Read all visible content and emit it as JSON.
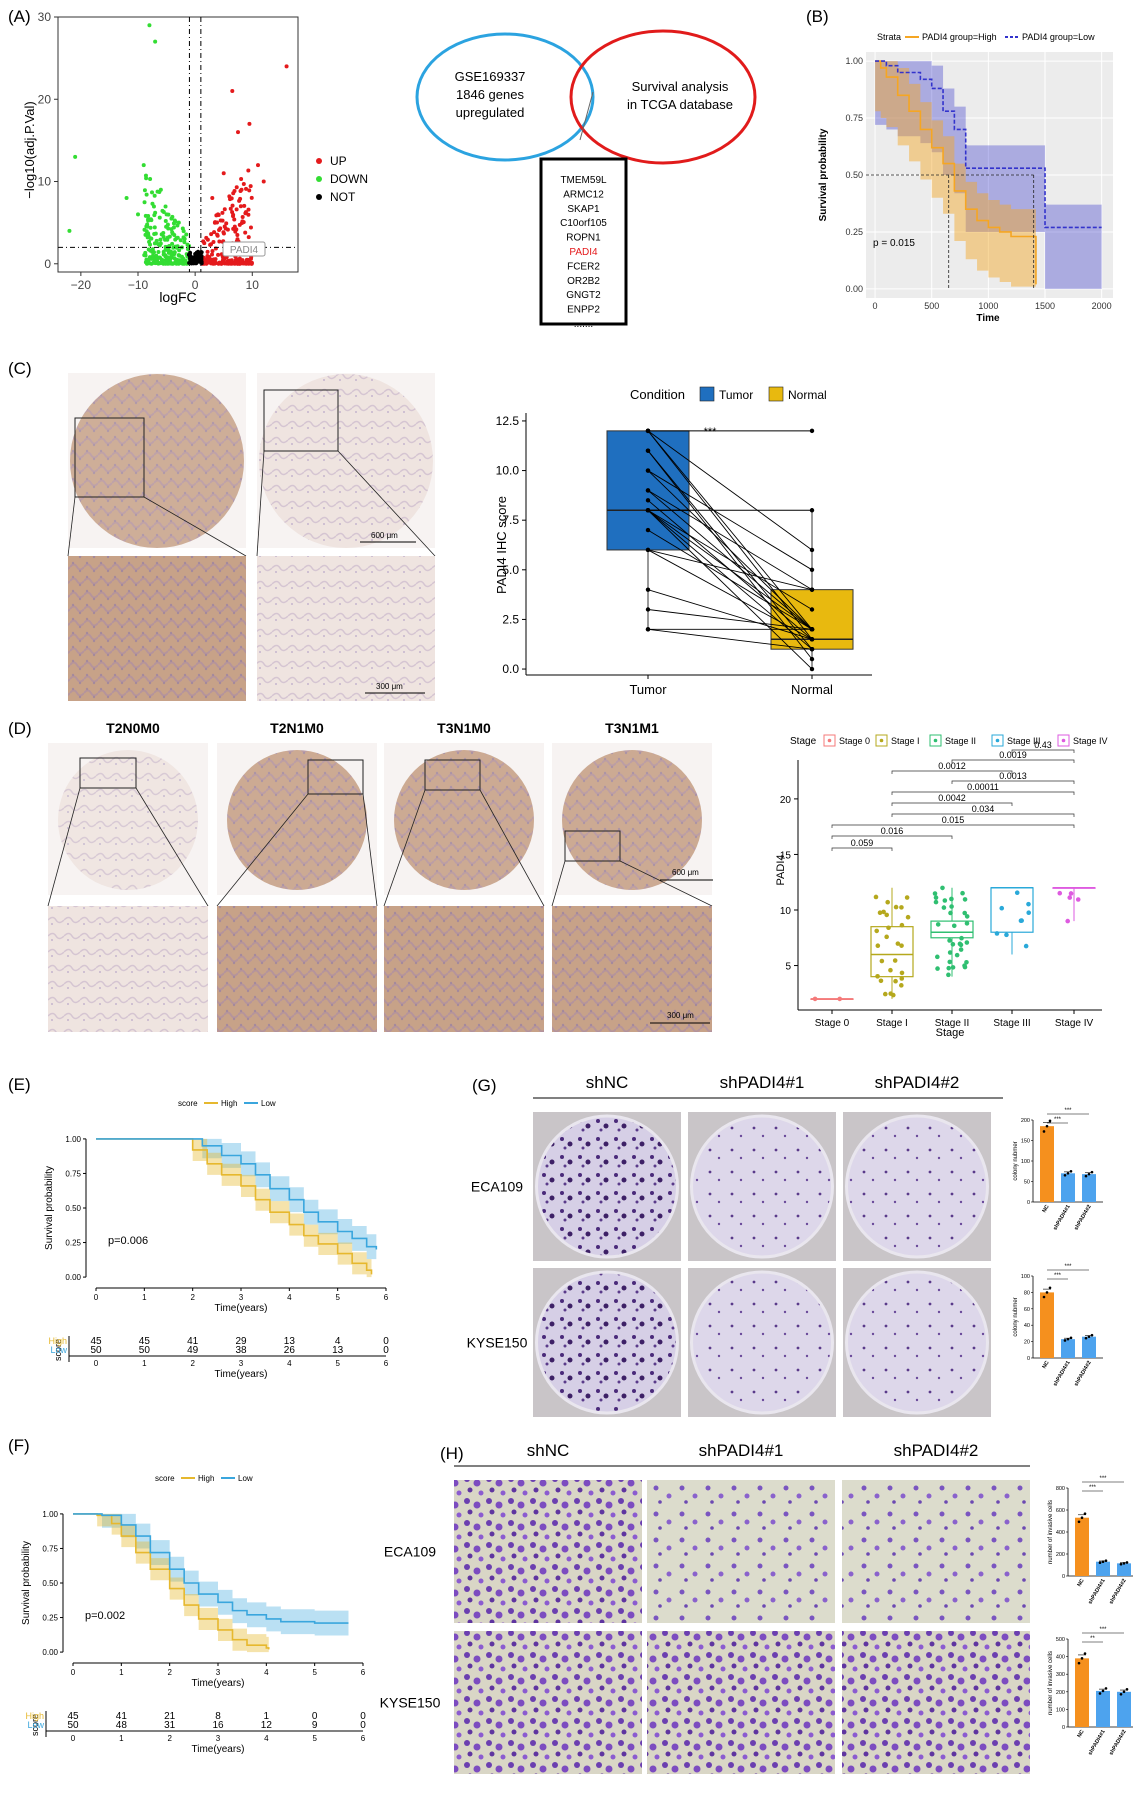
{
  "panels": {
    "A": {
      "letter": "(A)",
      "ylabel": "−log10(adj.P.Val)",
      "xlabel": "logFC",
      "xticks": [
        "−20",
        "−10",
        "0",
        "10"
      ],
      "yticks": [
        "0",
        "10",
        "20",
        "30"
      ],
      "legend": [
        "UP",
        "DOWN",
        "NOT"
      ],
      "colors": {
        "up": "#e41a1c",
        "down": "#33dd33",
        "not": "#000000"
      },
      "highlight_label": "PADI4",
      "venn_left": [
        "GSE169337",
        "1846 genes",
        "upregulated"
      ],
      "venn_right": [
        "Survival analysis",
        "in TCGA database"
      ],
      "gene_list": [
        "TMEM59L",
        "ARMC12",
        "SKAP1",
        "C10orf105",
        "ROPN1",
        "PADI4",
        "FCER2",
        "OR2B2",
        "GNGT2",
        "ENPP2",
        "......."
      ],
      "gene_highlight_color": "#e41a1c"
    },
    "B": {
      "letter": "(B)",
      "legend_title": "Strata",
      "legend": [
        "PADI4 group=High",
        "PADI4 group=Low"
      ],
      "colors": {
        "high": "#f5a623",
        "low": "#3333cc"
      },
      "ylabel": "Survival probability",
      "xlabel": "Time",
      "xticks": [
        "0",
        "500",
        "1000",
        "1500",
        "2000"
      ],
      "yticks": [
        "0.00",
        "0.25",
        "0.50",
        "0.75",
        "1.00"
      ],
      "pvalue": "p = 0.015"
    },
    "C": {
      "letter": "(C)",
      "scale_bar_1": "600 μm",
      "scale_bar_2": "300 μm",
      "legend_title": "Condition",
      "legend": [
        "Tumor",
        "Normal"
      ],
      "colors": {
        "tumor": "#1f6fbf",
        "normal": "#e8b90f"
      },
      "ylabel": "PADI4 IHC score",
      "yticks": [
        "0.0",
        "2.5",
        "5.0",
        "7.5",
        "10.0",
        "12.5"
      ],
      "xticks": [
        "Tumor",
        "Normal"
      ],
      "significance": "***"
    },
    "D": {
      "letter": "(D)",
      "image_labels": [
        "T2N0M0",
        "T2N1M0",
        "T3N1M0",
        "T3N1M1"
      ],
      "scale_bar_1": "600 μm",
      "scale_bar_2": "300 μm",
      "legend_title": "Stage",
      "legend": [
        "Stage 0",
        "Stage I",
        "Stage II",
        "Stage III",
        "Stage IV"
      ],
      "colors": [
        "#f47a7a",
        "#b5a81d",
        "#2fbf71",
        "#2aa9d9",
        "#de5be0"
      ],
      "ylabel": "PADI4",
      "xlabel": "Stage",
      "yticks": [
        "5",
        "10",
        "15",
        "20"
      ],
      "xticks": [
        "Stage 0",
        "Stage I",
        "Stage II",
        "Stage III",
        "Stage IV"
      ],
      "pvalues": [
        "0.43",
        "0.0019",
        "0.0012",
        "0.0013",
        "0.00011",
        "0.0042",
        "0.034",
        "0.015",
        "0.016",
        "0.059"
      ]
    },
    "E": {
      "letter": "(E)",
      "legend_title": "score",
      "legend": [
        "High",
        "Low"
      ],
      "colors": {
        "high": "#e6b82e",
        "low": "#3aa6dd"
      },
      "ylabel": "Survival probability",
      "xlabel": "Time(years)",
      "xticks": [
        "0",
        "1",
        "2",
        "3",
        "4",
        "5",
        "6"
      ],
      "yticks": [
        "0.00",
        "0.25",
        "0.50",
        "0.75",
        "1.00"
      ],
      "pvalue": "p=0.006",
      "risk_title": "score",
      "risk_rows": [
        {
          "name": "High",
          "values": [
            "45",
            "45",
            "41",
            "29",
            "13",
            "4",
            "0"
          ]
        },
        {
          "name": "Low",
          "values": [
            "50",
            "50",
            "49",
            "38",
            "26",
            "13",
            "0"
          ]
        }
      ]
    },
    "F": {
      "letter": "(F)",
      "legend_title": "score",
      "legend": [
        "High",
        "Low"
      ],
      "colors": {
        "high": "#e6b82e",
        "low": "#3aa6dd"
      },
      "ylabel": "Survival probability",
      "xlabel": "Time(years)",
      "xticks": [
        "0",
        "1",
        "2",
        "3",
        "4",
        "5",
        "6"
      ],
      "yticks": [
        "0.00",
        "0.25",
        "0.50",
        "0.75",
        "1.00"
      ],
      "pvalue": "p=0.002",
      "risk_title": "score",
      "risk_rows": [
        {
          "name": "High",
          "values": [
            "45",
            "41",
            "21",
            "8",
            "1",
            "0",
            "0"
          ]
        },
        {
          "name": "Low",
          "values": [
            "50",
            "48",
            "31",
            "16",
            "12",
            "9",
            "0"
          ]
        }
      ]
    },
    "G": {
      "letter": "(G)",
      "columns": [
        "shNC",
        "shPADI4#1",
        "shPADI4#2"
      ],
      "rows": [
        "ECA109",
        "KYSE150"
      ],
      "bar_ylabel": "colony nubmer",
      "bar_categories": [
        "NC",
        "shPADI4#1",
        "shPADI4#2"
      ],
      "bar_colors": [
        "#f5901e",
        "#4da3ee",
        "#4da3ee"
      ],
      "charts": [
        {
          "yticks": [
            "0",
            "50",
            "100",
            "150",
            "200"
          ],
          "ymax": 200,
          "values": [
            185,
            70,
            68
          ],
          "sig": [
            "***",
            "***"
          ]
        },
        {
          "yticks": [
            "0",
            "20",
            "40",
            "60",
            "80",
            "100"
          ],
          "ymax": 100,
          "values": [
            80,
            23,
            26
          ],
          "sig": [
            "***",
            "***"
          ]
        }
      ]
    },
    "H": {
      "letter": "(H)",
      "columns": [
        "shNC",
        "shPADI4#1",
        "shPADI4#2"
      ],
      "rows": [
        "ECA109",
        "KYSE150"
      ],
      "bar_ylabel": "number of invasive cells",
      "bar_categories": [
        "NC",
        "shPADI4#1",
        "shPADI4#2"
      ],
      "bar_colors": [
        "#f5901e",
        "#4da3ee",
        "#4da3ee"
      ],
      "charts": [
        {
          "yticks": [
            "0",
            "200",
            "400",
            "600",
            "800"
          ],
          "ymax": 800,
          "values": [
            530,
            130,
            115
          ],
          "sig": [
            "***",
            "***"
          ]
        },
        {
          "yticks": [
            "0",
            "100",
            "200",
            "300",
            "400",
            "500"
          ],
          "ymax": 500,
          "values": [
            390,
            205,
            200
          ],
          "sig": [
            "***",
            "**"
          ]
        }
      ]
    }
  },
  "chart_data": [
    {
      "type": "scatter",
      "name_ref": "A",
      "xlabel": "logFC",
      "ylabel": "−log10(adj.P.Val)",
      "xlim": [
        -24,
        18
      ],
      "ylim": [
        0,
        30
      ],
      "points_up": [
        [
          16,
          24
        ],
        [
          6.5,
          21
        ],
        [
          9.5,
          17
        ],
        [
          7.5,
          16
        ],
        [
          11,
          12
        ],
        [
          5,
          11
        ],
        [
          3,
          8
        ],
        [
          8,
          7
        ],
        [
          12,
          10
        ],
        [
          4,
          6
        ]
      ],
      "points_down": [
        [
          -8,
          29
        ],
        [
          -7,
          27
        ],
        [
          -21,
          13
        ],
        [
          -9,
          12
        ],
        [
          -6,
          9
        ],
        [
          -12,
          8
        ],
        [
          -5,
          6
        ],
        [
          -10,
          6
        ],
        [
          -22,
          4
        ]
      ]
    },
    {
      "type": "line",
      "name_ref": "B",
      "xlim": [
        0,
        2100
      ],
      "ylim": [
        0,
        1
      ],
      "series": [
        {
          "name": "PADI4 group=High",
          "x": [
            0,
            50,
            100,
            200,
            300,
            400,
            500,
            600,
            700,
            800,
            900,
            1000,
            1100,
            1200,
            1300,
            1400,
            1420
          ],
          "y": [
            1,
            0.97,
            0.93,
            0.85,
            0.78,
            0.7,
            0.62,
            0.55,
            0.43,
            0.35,
            0.3,
            0.27,
            0.25,
            0.23,
            0.23,
            0.23,
            0.02
          ]
        },
        {
          "name": "PADI4 group=Low",
          "x": [
            0,
            100,
            200,
            300,
            400,
            500,
            600,
            700,
            800,
            1000,
            1200,
            1400,
            1500,
            1600,
            2000
          ],
          "y": [
            1,
            0.98,
            0.95,
            0.95,
            0.92,
            0.88,
            0.78,
            0.7,
            0.53,
            0.53,
            0.53,
            0.53,
            0.27,
            0.27,
            0.27
          ]
        }
      ]
    },
    {
      "type": "box",
      "name_ref": "C",
      "categories": [
        "Tumor",
        "Normal"
      ],
      "ylim": [
        0,
        12.5
      ],
      "boxes": [
        {
          "q1": 6,
          "median": 8,
          "q3": 12,
          "min": 2,
          "max": 12
        },
        {
          "q1": 1,
          "median": 1.5,
          "q3": 4,
          "min": 0,
          "max": 8
        }
      ],
      "pairs": [
        [
          12,
          12
        ],
        [
          12,
          1.5
        ],
        [
          12,
          2
        ],
        [
          11,
          1
        ],
        [
          11,
          0.5
        ],
        [
          10,
          2
        ],
        [
          9,
          4
        ],
        [
          9,
          2
        ],
        [
          8.5,
          1.5
        ],
        [
          8,
          3
        ],
        [
          8,
          8
        ],
        [
          8,
          1
        ],
        [
          8,
          0
        ],
        [
          7,
          2
        ],
        [
          6,
          1.5
        ],
        [
          6,
          4
        ],
        [
          4,
          1.5
        ],
        [
          3,
          2
        ],
        [
          2,
          2
        ],
        [
          2,
          1
        ],
        [
          12,
          6
        ],
        [
          10,
          5
        ],
        [
          8,
          2
        ]
      ]
    },
    {
      "type": "box",
      "name_ref": "D",
      "categories": [
        "Stage 0",
        "Stage I",
        "Stage II",
        "Stage III",
        "Stage IV"
      ],
      "ylim": [
        1,
        23
      ],
      "boxes": [
        {
          "q1": 2,
          "median": 2,
          "q3": 2,
          "min": 2,
          "max": 2
        },
        {
          "q1": 4,
          "median": 6,
          "q3": 8.5,
          "min": 2,
          "max": 12
        },
        {
          "q1": 7.5,
          "median": 8,
          "q3": 9,
          "min": 4,
          "max": 12
        },
        {
          "q1": 8,
          "median": 12,
          "q3": 12,
          "min": 6,
          "max": 12
        },
        {
          "q1": 12,
          "median": 12,
          "q3": 12,
          "min": 9,
          "max": 12
        }
      ]
    },
    {
      "type": "line",
      "name_ref": "E",
      "xlim": [
        0,
        6
      ],
      "ylim": [
        0,
        1
      ],
      "series": [
        {
          "name": "High",
          "x": [
            0,
            1.7,
            2,
            2.3,
            2.6,
            3,
            3.3,
            3.6,
            4,
            4.3,
            4.6,
            5,
            5.3,
            5.6,
            5.7
          ],
          "y": [
            1,
            1,
            0.92,
            0.82,
            0.74,
            0.66,
            0.56,
            0.47,
            0.38,
            0.3,
            0.24,
            0.17,
            0.1,
            0.05,
            0.02
          ]
        },
        {
          "name": "Low",
          "x": [
            0,
            1.9,
            2.2,
            2.6,
            3,
            3.3,
            3.6,
            4,
            4.3,
            4.6,
            5,
            5.3,
            5.6,
            5.8
          ],
          "y": [
            1,
            1,
            0.95,
            0.88,
            0.82,
            0.74,
            0.64,
            0.56,
            0.47,
            0.4,
            0.33,
            0.28,
            0.22,
            0.2
          ]
        }
      ]
    },
    {
      "type": "line",
      "name_ref": "F",
      "xlim": [
        0,
        6
      ],
      "ylim": [
        0,
        1
      ],
      "series": [
        {
          "name": "High",
          "x": [
            0,
            0.5,
            0.8,
            1,
            1.3,
            1.6,
            2,
            2.3,
            2.6,
            3,
            3.3,
            3.6,
            4,
            4.05
          ],
          "y": [
            1,
            0.99,
            0.93,
            0.84,
            0.72,
            0.6,
            0.46,
            0.34,
            0.24,
            0.16,
            0.09,
            0.05,
            0.03,
            0.02
          ]
        },
        {
          "name": "Low",
          "x": [
            0,
            0.6,
            1,
            1.3,
            1.6,
            2,
            2.3,
            2.6,
            3,
            3.3,
            3.6,
            4,
            4.3,
            5,
            5.7
          ],
          "y": [
            1,
            0.99,
            0.92,
            0.84,
            0.72,
            0.6,
            0.5,
            0.42,
            0.36,
            0.3,
            0.27,
            0.24,
            0.22,
            0.21,
            0.21
          ]
        }
      ]
    }
  ]
}
